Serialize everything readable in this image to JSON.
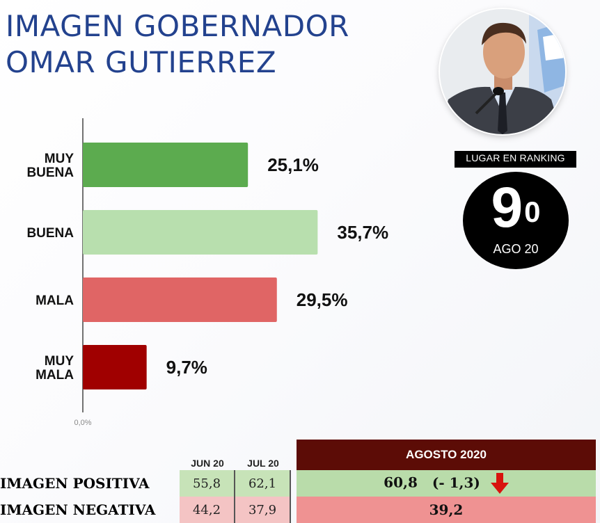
{
  "title": {
    "line1": "IMAGEN GOBERNADOR",
    "line2": "OMAR GUTIERREZ"
  },
  "colors": {
    "title": "#23428e",
    "muy_buena": "#5cab4f",
    "buena": "#b8dfae",
    "mala": "#e06565",
    "muy_mala": "#a00000",
    "month_header": "#5c0c06",
    "arrow": "#d8130e"
  },
  "chart_data": {
    "type": "bar",
    "orientation": "horizontal",
    "categories": [
      [
        "MUY",
        "BUENA"
      ],
      [
        "BUENA"
      ],
      [
        "MALA"
      ],
      [
        "MUY",
        "MALA"
      ]
    ],
    "values": [
      25.1,
      35.7,
      29.5,
      9.7
    ],
    "value_labels": [
      "25,1%",
      "35,7%",
      "29,5%",
      "9,7%"
    ],
    "axis_origin_label": "0,0%",
    "xlim": [
      0,
      40
    ],
    "grid": false
  },
  "ranking": {
    "label": "LUGAR EN RANKING",
    "number": "9",
    "superscript": "0",
    "date": "AGO 20"
  },
  "summary": {
    "periods": [
      "JUN 20",
      "JUL 20"
    ],
    "current_period": "AGOSTO 2020",
    "rows": [
      {
        "label": "IMAGEN POSITIVA",
        "values": [
          "55,8",
          "62,1"
        ],
        "current": "60,8",
        "change": "(- 1,3)"
      },
      {
        "label": "IMAGEN NEGATIVA",
        "values": [
          "44,2",
          "37,9"
        ],
        "current": "39,2",
        "change": ""
      }
    ],
    "trend_icon": "down-arrow-icon"
  }
}
